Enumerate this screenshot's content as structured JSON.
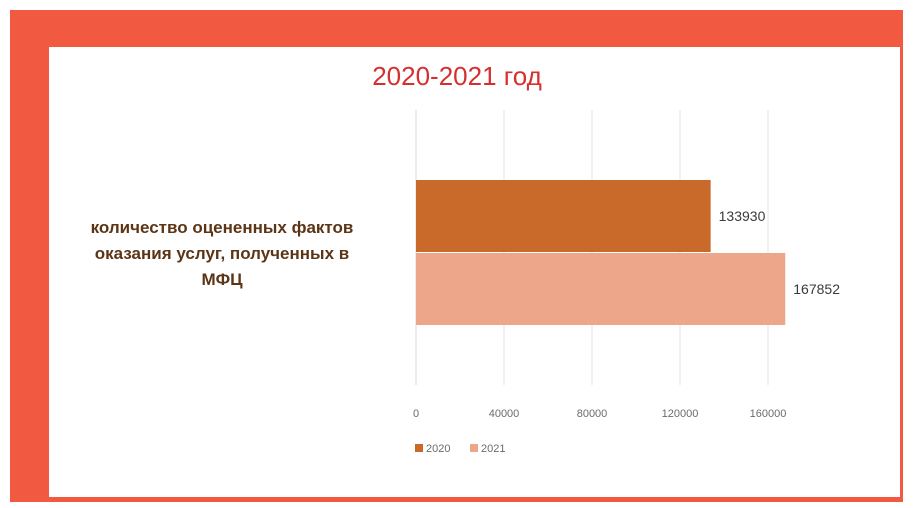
{
  "colors": {
    "frame": "#f15a40",
    "title": "#d62f2f",
    "series_2020": "#c9692a",
    "series_2021": "#eea68a"
  },
  "chart_data": {
    "type": "bar",
    "orientation": "horizontal",
    "title": "2020-2021 год",
    "categories": [
      "количество оцененных фактов оказания услуг, полученных в МФЦ"
    ],
    "category_label_lines": [
      "количество оцененных фактов",
      "оказания услуг, полученных в",
      "МФЦ"
    ],
    "series": [
      {
        "name": "2020",
        "values": [
          133930
        ],
        "color": "#c9692a"
      },
      {
        "name": "2021",
        "values": [
          167852
        ],
        "color": "#eea68a"
      }
    ],
    "xlim": [
      0,
      180000
    ],
    "xticks": [
      0,
      40000,
      80000,
      120000,
      160000
    ],
    "grid": true,
    "legend": "bottom"
  }
}
